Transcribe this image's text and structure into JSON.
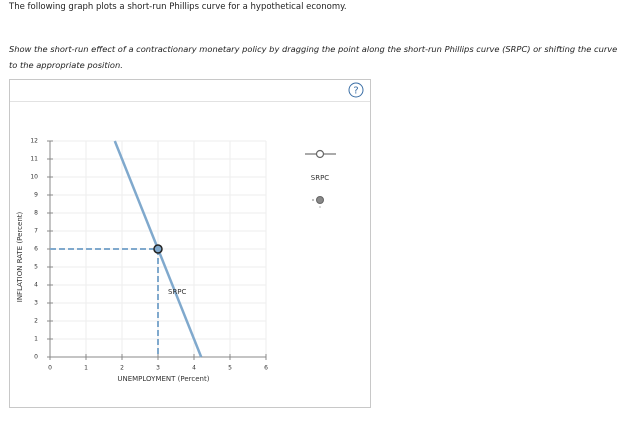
{
  "header": {
    "intro": "The following graph plots a short-run Phillips curve for a hypothetical economy.",
    "instruction": "Show the short-run effect of a contractionary monetary policy by dragging the point along the short-run Phillips curve (SRPC) or shifting the curve to the appropriate position."
  },
  "help_icon": "?",
  "chart_data": {
    "type": "line",
    "x_label": "UNEMPLOYMENT (Percent)",
    "y_label": "INFLATION RATE (Percent)",
    "xlim": [
      0,
      6
    ],
    "xticks": [
      0,
      1,
      2,
      3,
      4,
      5,
      6
    ],
    "ylim": [
      0,
      12
    ],
    "yticks": [
      0,
      1,
      2,
      3,
      4,
      5,
      6,
      7,
      8,
      9,
      10,
      11,
      12
    ],
    "grid": true,
    "series": [
      {
        "name": "SRPC",
        "color": "#80a9cd",
        "x": [
          1.8,
          3,
          4.2
        ],
        "values": [
          12,
          6,
          0
        ]
      }
    ]
  }
}
